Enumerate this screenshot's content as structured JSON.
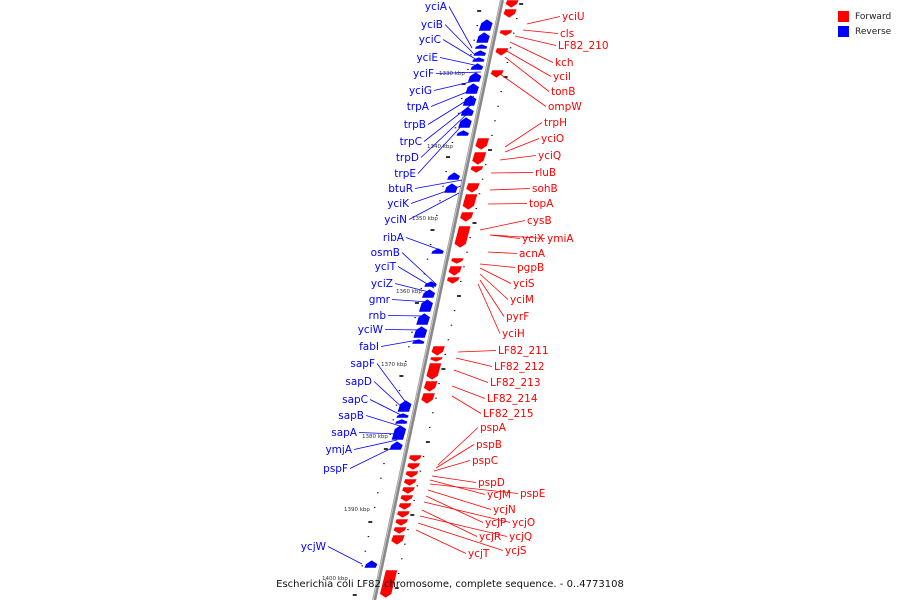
{
  "legend": {
    "forward_label": "Forward",
    "forward_color": "#ff0000",
    "reverse_label": "Reverse",
    "reverse_color": "#0000ff"
  },
  "caption": "Escherichia coli LF82 chromosome, complete sequence. - 0..4773108",
  "ticks": [
    "1330 kbp",
    "1340 kbp",
    "1350 kbp",
    "1360 kbp",
    "1370 kbp",
    "1380 kbp",
    "1390 kbp",
    "1400 kbp"
  ],
  "reverse_labels": [
    "yciA",
    "yciB",
    "yciC",
    "yciE",
    "yciF",
    "yciG",
    "trpA",
    "trpB",
    "trpC",
    "trpD",
    "trpE",
    "btuR",
    "yciK",
    "yciN",
    "ribA",
    "osmB",
    "yciT",
    "yciZ",
    "gmr",
    "rnb",
    "yciW",
    "fabI",
    "sapF",
    "sapD",
    "sapC",
    "sapB",
    "sapA",
    "ymjA",
    "pspF",
    "ycjW"
  ],
  "forward_labels": [
    "yciU",
    "cls",
    "LF82_210",
    "kch",
    "yciI",
    "tonB",
    "ompW",
    "trpH",
    "yciO",
    "yciQ",
    "rluB",
    "sohB",
    "topA",
    "cysB",
    "yciX",
    "ymiA",
    "acnA",
    "pgpB",
    "yciS",
    "yciM",
    "pyrF",
    "yciH",
    "LF82_211",
    "LF82_212",
    "LF82_213",
    "LF82_214",
    "LF82_215",
    "pspA",
    "pspB",
    "pspC",
    "pspD",
    "ycjM",
    "pspE",
    "ycjN",
    "ycjP",
    "ycjO",
    "ycjR",
    "ycjQ",
    "ycjS",
    "ycjT"
  ]
}
